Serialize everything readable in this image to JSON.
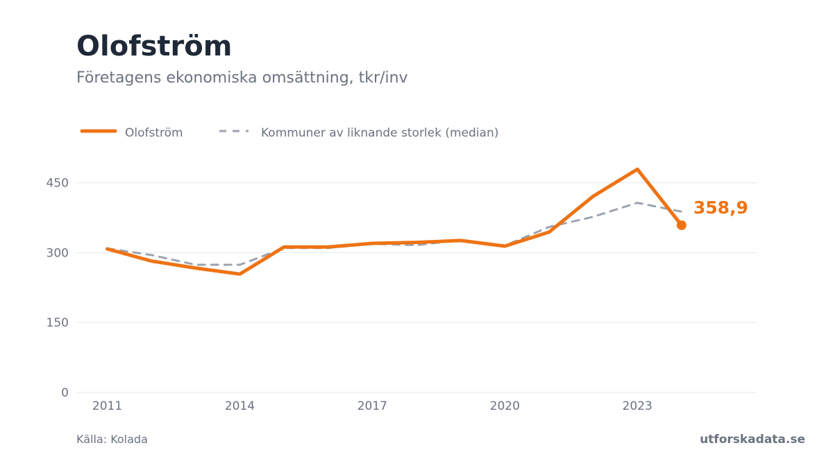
{
  "header": {
    "title": "Olofström",
    "subtitle": "Företagens ekonomiska omsättning, tkr/inv"
  },
  "footer": {
    "source": "Källa: Kolada",
    "brand": "utforskadata.se"
  },
  "colors": {
    "primary": "#ee7314",
    "median": "#9ca3af",
    "grid": "#e5e7eb",
    "text": "#6b7280"
  },
  "chart_data": {
    "type": "line",
    "x": [
      2011,
      2012,
      2013,
      2014,
      2015,
      2016,
      2017,
      2018,
      2019,
      2020,
      2021,
      2022,
      2023,
      2024
    ],
    "xticks": [
      2011,
      2014,
      2017,
      2020,
      2023
    ],
    "yticks": [
      0,
      150,
      300,
      450
    ],
    "ylim": [
      0,
      500
    ],
    "xlim": [
      2010.3,
      2025.7
    ],
    "grid": true,
    "legend_position": "top-left",
    "series": [
      {
        "name": "Olofström",
        "style": "solid",
        "values": [
          308,
          282,
          267,
          254,
          312,
          312,
          320,
          322,
          326,
          314,
          344,
          421,
          479,
          358.9
        ]
      },
      {
        "name": "Kommuner av liknande storlek (median)",
        "style": "dashed",
        "values": [
          309,
          295,
          274,
          274,
          310,
          310,
          319,
          316,
          327,
          315,
          355,
          377,
          407,
          388
        ]
      }
    ],
    "end_label": "358,9"
  }
}
